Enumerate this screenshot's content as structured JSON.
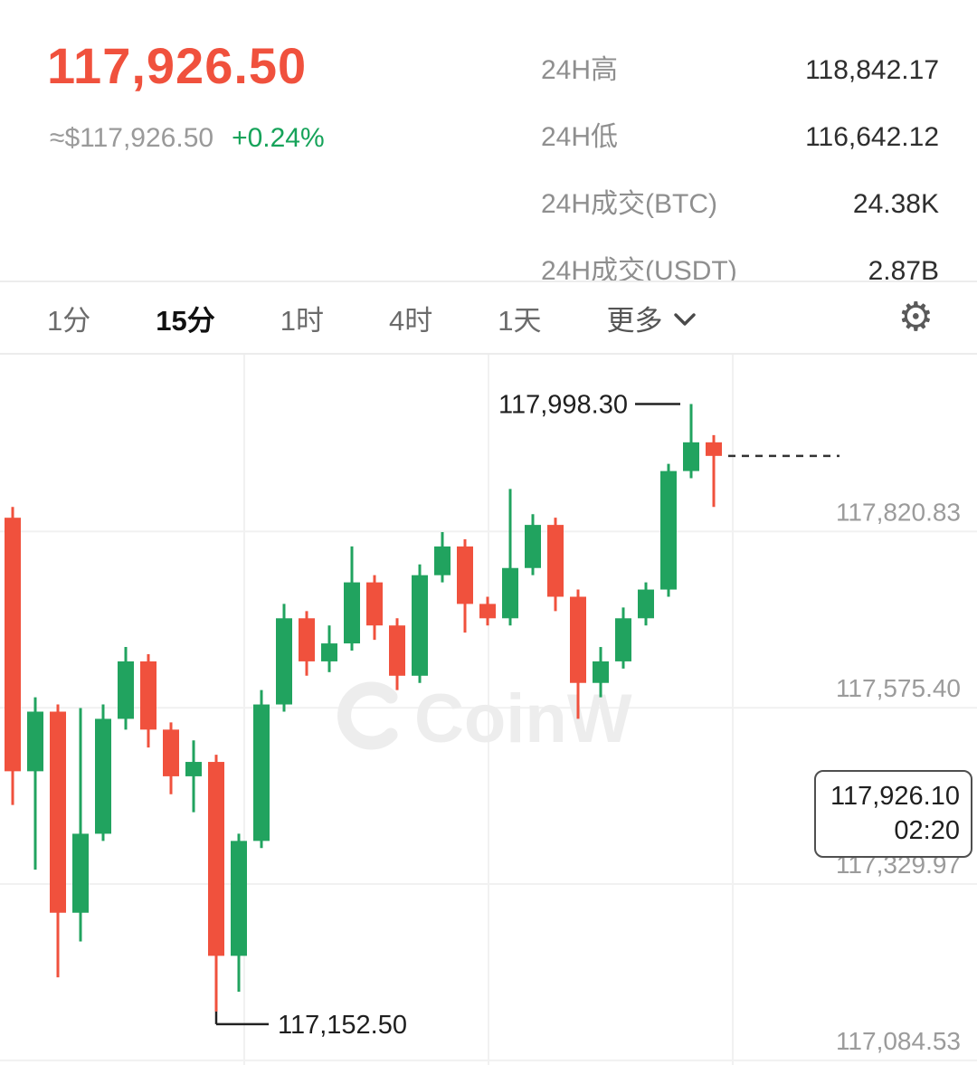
{
  "header": {
    "price": "117,926.50",
    "price_usd": "≈$117,926.50",
    "change_pct": "+0.24%",
    "stats": [
      {
        "label": "24H高",
        "value": "118,842.17"
      },
      {
        "label": "24H低",
        "value": "116,642.12"
      },
      {
        "label": "24H成交(BTC)",
        "value": "24.38K"
      },
      {
        "label": "24H成交(USDT)",
        "value": "2.87B"
      }
    ]
  },
  "toolbar": {
    "tabs": [
      {
        "label": "1分"
      },
      {
        "label": "15分"
      },
      {
        "label": "1时"
      },
      {
        "label": "4时"
      },
      {
        "label": "1天"
      }
    ],
    "more_label": "更多",
    "settings_icon": "⚙"
  },
  "chart_data": {
    "type": "candlestick",
    "interval": "15m",
    "watermark": "CoinW",
    "up_color": "#21a35f",
    "down_color": "#f0513d",
    "grid_color": "#f1f1f1",
    "ylim": [
      117078,
      118067
    ],
    "x0": 14,
    "dx": 25,
    "y_gridlines": [
      {
        "value": 117820.83,
        "label": "117,820.83"
      },
      {
        "value": 117575.4,
        "label": "117,575.40"
      },
      {
        "value": 117329.97,
        "label": "117,329.97"
      },
      {
        "value": 117084.53,
        "label": "117,084.53"
      }
    ],
    "x_gridlines": [
      270,
      540,
      810
    ],
    "candles": [
      [
        117840,
        117855,
        117440,
        117487
      ],
      [
        117487,
        117590,
        117350,
        117570
      ],
      [
        117570,
        117580,
        117200,
        117290
      ],
      [
        117290,
        117575,
        117250,
        117400
      ],
      [
        117400,
        117580,
        117390,
        117560
      ],
      [
        117560,
        117660,
        117545,
        117640
      ],
      [
        117640,
        117650,
        117520,
        117545
      ],
      [
        117545,
        117555,
        117455,
        117480
      ],
      [
        117480,
        117530,
        117430,
        117500
      ],
      [
        117500,
        117510,
        117152.5,
        117230
      ],
      [
        117230,
        117400,
        117180,
        117390
      ],
      [
        117390,
        117600,
        117380,
        117580
      ],
      [
        117580,
        117720,
        117570,
        117700
      ],
      [
        117700,
        117710,
        117620,
        117640
      ],
      [
        117640,
        117690,
        117625,
        117665
      ],
      [
        117665,
        117800,
        117655,
        117750
      ],
      [
        117750,
        117760,
        117670,
        117690
      ],
      [
        117690,
        117700,
        117600,
        117620
      ],
      [
        117620,
        117775,
        117610,
        117760
      ],
      [
        117760,
        117820,
        117750,
        117800
      ],
      [
        117800,
        117810,
        117680,
        117720
      ],
      [
        117720,
        117730,
        117690,
        117700
      ],
      [
        117700,
        117880,
        117690,
        117770
      ],
      [
        117770,
        117845,
        117760,
        117830
      ],
      [
        117830,
        117840,
        117710,
        117730
      ],
      [
        117730,
        117740,
        117560,
        117610
      ],
      [
        117610,
        117660,
        117590,
        117640
      ],
      [
        117640,
        117715,
        117630,
        117700
      ],
      [
        117700,
        117750,
        117690,
        117740
      ],
      [
        117740,
        117915,
        117730,
        117905
      ],
      [
        117905,
        117998.3,
        117895,
        117945
      ],
      [
        117945,
        117955,
        117855,
        117926.1
      ]
    ],
    "annotations": {
      "high": {
        "label": "117,998.30",
        "candle_index": 30
      },
      "low": {
        "label": "117,152.50",
        "candle_index": 9
      },
      "last": {
        "price": "117,926.10",
        "time": "02:20"
      }
    }
  }
}
